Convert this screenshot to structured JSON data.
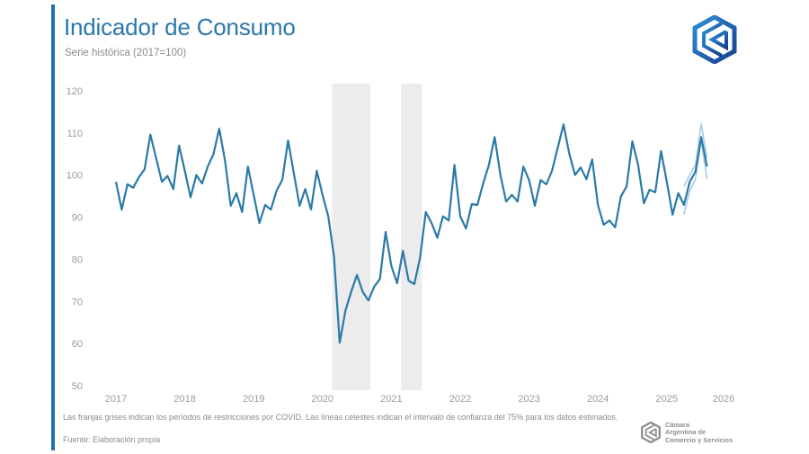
{
  "header": {
    "title": "Indicador de Consumo",
    "subtitle": "Serie histórica (2017=100)"
  },
  "footer": {
    "note": "Las franjas grises indican los períodos de restricciones por COVID. Las líneas celestes indican el intervalo de confianza del 75% para los datos estimados.",
    "source": "Fuente: Elaboración propia",
    "org_line1": "Cámara",
    "org_line2": "Argentina de",
    "org_line3": "Comercio y Servicios"
  },
  "colors": {
    "accent": "#1f6fb5",
    "title": "#2a78ad",
    "series": "#2a7aa8",
    "confidence": "#a9cce6",
    "covid_band": "#ececec",
    "tick_text": "#9a9a9a"
  },
  "chart_data": {
    "type": "line",
    "title": "Indicador de Consumo",
    "subtitle": "Serie histórica (2017=100)",
    "xlabel": "",
    "ylabel": "",
    "frequency": "monthly",
    "start": "2017-01",
    "x_ticks": [
      "2017",
      "2018",
      "2019",
      "2020",
      "2021",
      "2022",
      "2023",
      "2024",
      "2025",
      "2026"
    ],
    "y_ticks": [
      50,
      60,
      70,
      80,
      90,
      100,
      110,
      120
    ],
    "ylim": [
      50,
      120
    ],
    "grid": false,
    "legend": "none",
    "series": [
      {
        "name": "Indicador de Consumo",
        "values": [
          98.4,
          91.8,
          97.8,
          97.0,
          99.5,
          101.4,
          109.6,
          104.0,
          98.4,
          99.8,
          96.7,
          107.0,
          101.0,
          94.7,
          100.0,
          98.0,
          102.0,
          105.0,
          111.0,
          103.5,
          92.7,
          95.7,
          91.2,
          102.0,
          95.3,
          88.6,
          92.9,
          91.8,
          96.3,
          98.9,
          108.2,
          100.4,
          92.7,
          96.7,
          91.8,
          101.0,
          95.3,
          90.2,
          80.6,
          60.2,
          67.8,
          72.3,
          76.3,
          72.3,
          70.2,
          73.5,
          75.3,
          86.5,
          78.4,
          74.3,
          82.0,
          74.9,
          74.1,
          80.4,
          91.2,
          88.6,
          85.1,
          90.2,
          89.2,
          102.4,
          90.2,
          87.3,
          93.1,
          92.9,
          98.0,
          102.4,
          109.0,
          100.0,
          93.7,
          95.3,
          93.7,
          102.0,
          98.8,
          92.7,
          98.8,
          97.8,
          101.0,
          106.5,
          112.0,
          105.1,
          100.0,
          101.8,
          99.0,
          103.7,
          92.9,
          88.2,
          89.2,
          87.6,
          94.9,
          97.3,
          108.0,
          102.4,
          93.3,
          96.5,
          95.9,
          105.7,
          98.4,
          90.6,
          95.7,
          92.9,
          98.4,
          100.8,
          109.0,
          102.0
        ]
      },
      {
        "name": "IC 75% superior",
        "start_index": 99,
        "values": [
          97.3,
          100.0,
          102.4,
          112.2,
          104.0
        ]
      },
      {
        "name": "IC 75% inferior",
        "start_index": 99,
        "values": [
          90.6,
          96.3,
          99.0,
          108.2,
          99.0
        ]
      }
    ],
    "shaded_periods": [
      {
        "label": "Restricciones COVID",
        "start": "2020-03",
        "end": "2020-09"
      },
      {
        "label": "Restricciones COVID",
        "start": "2021-03",
        "end": "2021-06"
      }
    ]
  }
}
